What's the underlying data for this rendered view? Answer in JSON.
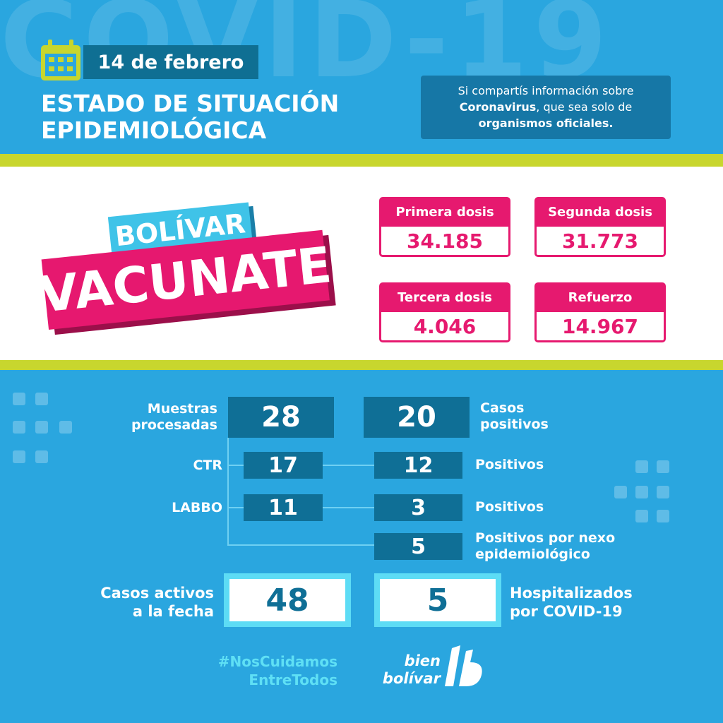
{
  "watermark": "COVID-19",
  "header": {
    "date": "14 de febrero",
    "title": [
      "ESTADO DE SITUACIÓN",
      "EPIDEMIOLÓGICA"
    ],
    "notice": {
      "line1": "Si compartís información sobre",
      "bold1": "Coronavirus",
      "rest2": ", que sea solo de",
      "bold2": "organismos oficiales."
    }
  },
  "badge": {
    "top": "BOLÍVAR",
    "main": "VACUNATE"
  },
  "doses": [
    {
      "label": "Primera dosis",
      "value": "34.185"
    },
    {
      "label": "Segunda dosis",
      "value": "31.773"
    },
    {
      "label": "Tercera dosis",
      "value": "4.046"
    },
    {
      "label": "Refuerzo",
      "value": "14.967"
    }
  ],
  "stats": {
    "samples": {
      "label": [
        "Muestras",
        "procesadas"
      ],
      "value": "28"
    },
    "positives": {
      "label": [
        "Casos",
        "positivos"
      ],
      "value": "20"
    },
    "ctr": {
      "label": "CTR",
      "value": "17",
      "positives": "12",
      "positives_label": "Positivos"
    },
    "labbo": {
      "label": "LABBO",
      "value": "11",
      "positives": "3",
      "positives_label": "Positivos"
    },
    "nexo": {
      "value": "5",
      "label": [
        "Positivos por nexo",
        "epidemiológico"
      ]
    },
    "active": {
      "label": [
        "Casos activos",
        "a la fecha"
      ],
      "value": "48"
    },
    "hospital": {
      "label": [
        "Hospitalizados",
        "por COVID-19"
      ],
      "value": "5"
    }
  },
  "footer": {
    "hashtag": [
      "#NosCuidamos",
      "EntreTodos"
    ],
    "logo": [
      "bien",
      "bolívar"
    ]
  }
}
